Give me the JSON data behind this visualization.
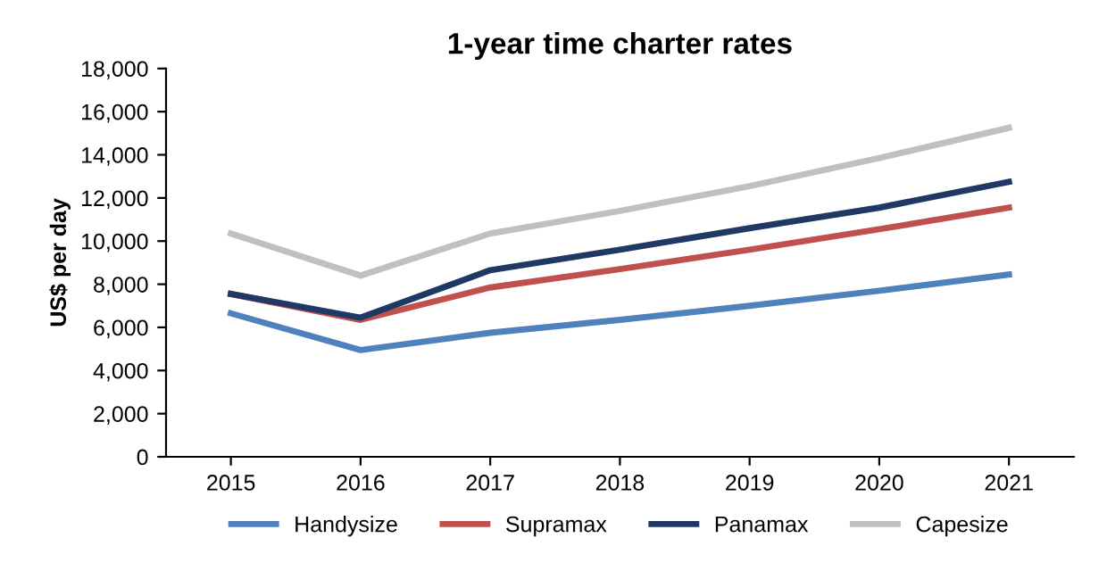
{
  "chart_data": {
    "type": "line",
    "title": "1-year time charter rates",
    "ylabel": "US$ per day",
    "categories": [
      "2015",
      "2016",
      "2017",
      "2018",
      "2019",
      "2020",
      "2021"
    ],
    "series": [
      {
        "name": "Handysize",
        "color": "#4f81bd",
        "values": [
          6650,
          4950,
          5750,
          6350,
          7000,
          7700,
          8450
        ]
      },
      {
        "name": "Supramax",
        "color": "#c0504d",
        "values": [
          7550,
          6350,
          7850,
          8700,
          9600,
          10550,
          11550
        ]
      },
      {
        "name": "Panamax",
        "color": "#1f3864",
        "values": [
          7550,
          6450,
          8650,
          9600,
          10600,
          11550,
          12750
        ]
      },
      {
        "name": "Capesize",
        "color": "#c0c0c0",
        "values": [
          10350,
          8400,
          10350,
          11400,
          12550,
          13850,
          15250
        ]
      }
    ],
    "ylim": [
      0,
      18000
    ],
    "yticks": [
      {
        "value": 0,
        "label": "0"
      },
      {
        "value": 2000,
        "label": "2,000"
      },
      {
        "value": 4000,
        "label": "4,000"
      },
      {
        "value": 6000,
        "label": "6,000"
      },
      {
        "value": 8000,
        "label": "8,000"
      },
      {
        "value": 10000,
        "label": "10,000"
      },
      {
        "value": 12000,
        "label": "12,000"
      },
      {
        "value": 14000,
        "label": "14,000"
      },
      {
        "value": 16000,
        "label": "16,000"
      },
      {
        "value": 18000,
        "label": "18,000"
      }
    ],
    "grid": false,
    "legend": "bottom",
    "marker": "none",
    "line_style": "solid"
  }
}
